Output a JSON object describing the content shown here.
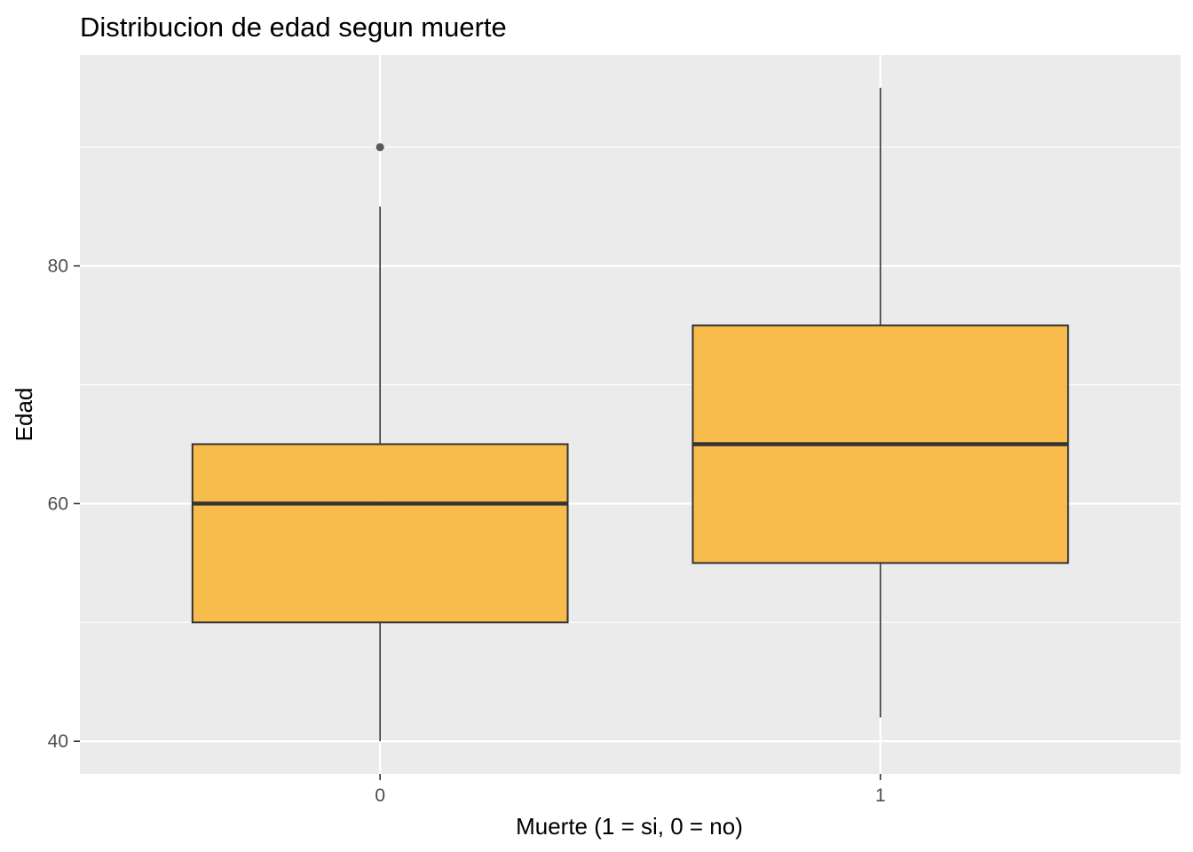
{
  "chart_data": {
    "type": "boxplot",
    "title": "Distribucion de edad segun muerte",
    "xlabel": "Muerte (1 = si, 0 = no)",
    "ylabel": "Edad",
    "categories": [
      "0",
      "1"
    ],
    "boxes": [
      {
        "category": "0",
        "whisker_low": 40,
        "q1": 50,
        "median": 60,
        "q3": 65,
        "whisker_high": 85,
        "outliers": [
          90
        ]
      },
      {
        "category": "1",
        "whisker_low": 42,
        "q1": 55,
        "median": 65,
        "q3": 75,
        "whisker_high": 95,
        "outliers": []
      }
    ],
    "ylim": [
      37.25,
      97.75
    ],
    "yticks": [
      40,
      60,
      80
    ],
    "grid": true,
    "colors": {
      "panel": "#ebebeb",
      "grid": "#ffffff",
      "box_fill": "#f9b945",
      "box_line": "#333333",
      "outlier": "#595959",
      "tick": "#333333"
    }
  }
}
